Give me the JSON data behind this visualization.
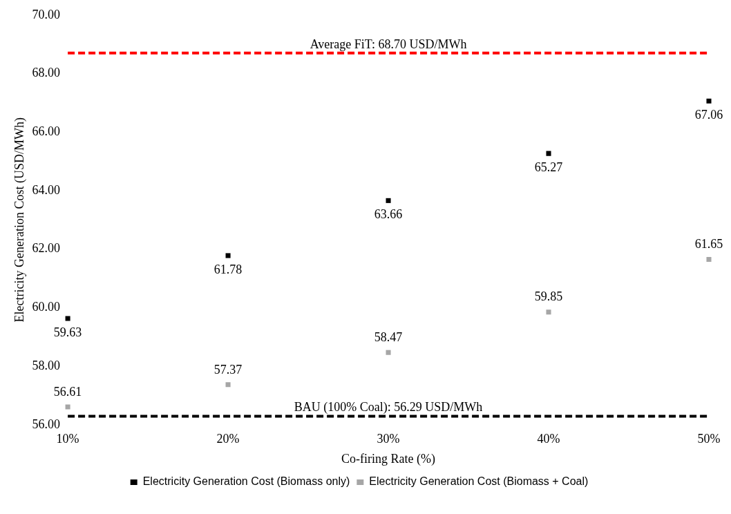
{
  "chart_data": {
    "type": "scatter",
    "xlabel": "Co-firing Rate (%)",
    "ylabel": "Electricity Generation Cost (USD/MWh)",
    "categories": [
      "10%",
      "20%",
      "30%",
      "40%",
      "50%"
    ],
    "series": [
      {
        "name": "Electricity Generation Cost (Biomass only)",
        "color": "#000000",
        "values": [
          59.63,
          61.78,
          63.66,
          65.27,
          67.06
        ]
      },
      {
        "name": "Electricity Generation Cost (Biomass + Coal)",
        "color": "#a6a6a6",
        "values": [
          56.61,
          57.37,
          58.47,
          59.85,
          61.65
        ]
      }
    ],
    "ylim": [
      56,
      70
    ],
    "yticks": [
      {
        "value": 56,
        "label": "56.00"
      },
      {
        "value": 58,
        "label": "58.00"
      },
      {
        "value": 60,
        "label": "60.00"
      },
      {
        "value": 62,
        "label": "62.00"
      },
      {
        "value": 64,
        "label": "64.00"
      },
      {
        "value": 66,
        "label": "66.00"
      },
      {
        "value": 68,
        "label": "68.00"
      },
      {
        "value": 70,
        "label": "70.00"
      }
    ],
    "ref_lines": [
      {
        "axis": "y",
        "value": 68.7,
        "label": "Average FiT: 68.70 USD/MWh",
        "color": "#ff0000",
        "line_style": "dashed"
      },
      {
        "axis": "y",
        "value": 56.29,
        "label": "BAU (100% Coal): 56.29 USD/MWh",
        "color": "#000000",
        "line_style": "dashed"
      }
    ],
    "data_labels": true,
    "legend": "bottom",
    "marker": "square",
    "grid": false
  }
}
